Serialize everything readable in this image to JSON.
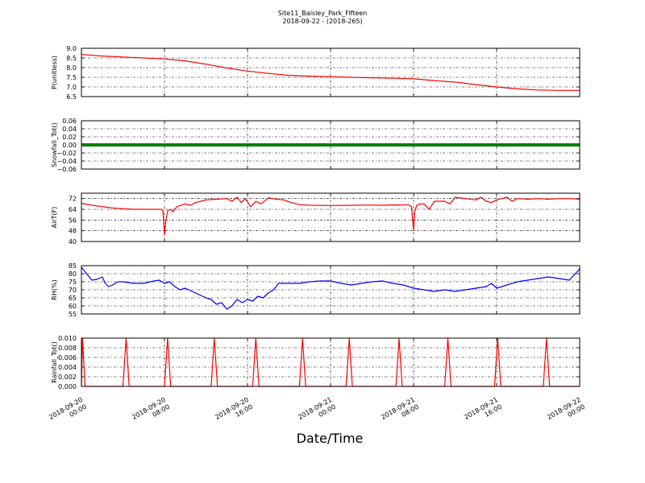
{
  "figure": {
    "title_line1": "Site11_Baisley_Park_Fifteen",
    "title_line2": "2018-09-22 - (2018-265)",
    "xlabel": "Date/Time",
    "x_ticks": [
      {
        "x": 0,
        "line1": "2018-09-20",
        "line2": "00:00"
      },
      {
        "x": 8,
        "line1": "2018-09-20",
        "line2": "08:00"
      },
      {
        "x": 16,
        "line1": "2018-09-20",
        "line2": "16:00"
      },
      {
        "x": 24,
        "line1": "2018-09-21",
        "line2": "00:00"
      },
      {
        "x": 32,
        "line1": "2018-09-21",
        "line2": "08:00"
      },
      {
        "x": 40,
        "line1": "2018-09-21",
        "line2": "16:00"
      },
      {
        "x": 48,
        "line1": "2018-09-22",
        "line2": "00:00"
      }
    ],
    "x_unit_note": "x values are hours since 2018-09-20 00:00",
    "xlim": [
      0,
      48
    ]
  },
  "chart_data": [
    {
      "type": "line",
      "ylabel": "P(unitless)",
      "color": "#ff0000",
      "ylim": [
        6.5,
        9.0
      ],
      "yticks": [
        "9.0",
        "8.5",
        "8.0",
        "7.5",
        "7.0",
        "6.5"
      ],
      "ytick_values": [
        9.0,
        8.5,
        8.0,
        7.5,
        7.0,
        6.5
      ],
      "grid": true,
      "series": [
        {
          "x": [
            0,
            2,
            4,
            6,
            8,
            10,
            12,
            14,
            16,
            18,
            20,
            22,
            24,
            26,
            28,
            30,
            32,
            34,
            36,
            38,
            40,
            42,
            44,
            46,
            48
          ],
          "values": [
            8.68,
            8.6,
            8.55,
            8.5,
            8.45,
            8.35,
            8.18,
            7.98,
            7.82,
            7.7,
            7.6,
            7.56,
            7.53,
            7.5,
            7.47,
            7.45,
            7.42,
            7.33,
            7.25,
            7.12,
            7.0,
            6.9,
            6.84,
            6.82,
            6.82
          ]
        }
      ]
    },
    {
      "type": "line",
      "ylabel": "Snowfall_Tot()",
      "color": "#008000",
      "ylim": [
        -0.06,
        0.06
      ],
      "yticks": [
        "0.06",
        "0.04",
        "0.02",
        "0.00",
        "−0.02",
        "−0.04",
        "−0.06"
      ],
      "ytick_values": [
        0.06,
        0.04,
        0.02,
        0.0,
        -0.02,
        -0.04,
        -0.06
      ],
      "grid": true,
      "series": [
        {
          "x": [
            0,
            48
          ],
          "values": [
            0,
            0
          ]
        }
      ]
    },
    {
      "type": "line",
      "ylabel": "AirT(F)",
      "color": "#ff0000",
      "ylim": [
        40,
        76
      ],
      "yticks": [
        "72",
        "64",
        "56",
        "48",
        "40"
      ],
      "ytick_values": [
        72,
        64,
        56,
        48,
        40
      ],
      "grid": true,
      "series": [
        {
          "x": [
            0,
            1,
            2,
            3,
            4,
            5,
            6,
            7,
            7.7,
            7.85,
            8.0,
            8.15,
            8.3,
            8.6,
            8.8,
            9.2,
            10,
            10.5,
            11,
            11.5,
            12,
            13,
            14,
            14.5,
            15,
            15.4,
            15.8,
            16.3,
            16.8,
            17.3,
            18,
            18.8,
            19.5,
            20,
            21,
            22,
            24,
            26,
            28,
            29,
            30,
            31,
            31.5,
            31.8,
            32.0,
            32.1,
            32.3,
            32.6,
            33,
            33.5,
            34,
            35,
            35.5,
            36,
            37,
            38,
            38.5,
            39,
            39.5,
            40,
            40.5,
            41,
            41.5,
            42,
            43,
            44,
            45,
            46,
            47,
            48
          ],
          "values": [
            68.5,
            67,
            66,
            65,
            64.5,
            64,
            64,
            64,
            64,
            63,
            45,
            56,
            63,
            64,
            62,
            66,
            68,
            67,
            69,
            70,
            71,
            71.5,
            72,
            70,
            73,
            69,
            72,
            66,
            70,
            68,
            72.5,
            71.5,
            71,
            69.5,
            67.5,
            67,
            66.8,
            67,
            67.2,
            67,
            67.3,
            67.2,
            67.5,
            66,
            48,
            62,
            67,
            68,
            68,
            64,
            70,
            70,
            68,
            73,
            72,
            71,
            73,
            70,
            69,
            71,
            72,
            73,
            70,
            72,
            71.5,
            72,
            71.5,
            72,
            72,
            71.5
          ]
        }
      ]
    },
    {
      "type": "line",
      "ylabel": "RH(%)",
      "color": "#0000ff",
      "ylim": [
        55,
        85
      ],
      "yticks": [
        "85",
        "80",
        "75",
        "70",
        "65",
        "60",
        "55"
      ],
      "ytick_values": [
        85,
        80,
        75,
        70,
        65,
        60,
        55
      ],
      "grid": true,
      "series": [
        {
          "x": [
            0,
            0.5,
            1,
            1.5,
            2,
            2.3,
            2.6,
            3,
            3.5,
            4,
            5,
            6,
            7,
            7.5,
            8,
            8.5,
            9,
            9.5,
            10,
            11,
            12,
            12.5,
            13,
            13.5,
            14,
            14.5,
            15,
            15.5,
            16,
            16.5,
            17,
            17.5,
            18,
            18.5,
            19,
            20,
            21,
            22,
            23,
            24,
            25,
            26,
            27,
            28,
            29,
            30,
            31,
            31.5,
            32,
            33,
            34,
            35,
            36,
            37,
            38,
            39,
            39.5,
            40,
            41,
            42,
            43,
            44,
            45,
            46,
            47,
            48
          ],
          "values": [
            84,
            80,
            76,
            76.5,
            78,
            74,
            72,
            73,
            75,
            75,
            74,
            74,
            75.5,
            76,
            74,
            75,
            72,
            70,
            71,
            68,
            65,
            64,
            61,
            62,
            58,
            60,
            64,
            62,
            64,
            63,
            66,
            65,
            68,
            70,
            74,
            74,
            74,
            75,
            75.5,
            75.5,
            74,
            73,
            74,
            75,
            75.5,
            74,
            73,
            72,
            71,
            70,
            69,
            70,
            69,
            70,
            71,
            72,
            74,
            71,
            73,
            75,
            76,
            77,
            78,
            77,
            76,
            83
          ]
        }
      ]
    },
    {
      "type": "line",
      "ylabel": "Rainfall_Tot()",
      "color": "#ff0000",
      "ylim": [
        0.0,
        0.01
      ],
      "yticks": [
        "0.010",
        "0.008",
        "0.006",
        "0.004",
        "0.002",
        "0.000"
      ],
      "ytick_values": [
        0.01,
        0.008,
        0.006,
        0.004,
        0.002,
        0.0
      ],
      "grid": true,
      "series": [
        {
          "x": [
            0,
            0.1,
            0.35,
            0.6,
            4.0,
            4.3,
            4.6,
            8.0,
            8.3,
            8.6,
            12.5,
            12.8,
            13.1,
            16.5,
            16.8,
            17.1,
            21.0,
            21.3,
            21.6,
            25.5,
            25.8,
            26.1,
            30.3,
            30.6,
            30.9,
            35.0,
            35.3,
            35.6,
            39.8,
            40.1,
            40.4,
            44.5,
            44.8,
            45.1,
            48
          ],
          "values": [
            0,
            0.01,
            0,
            0,
            0,
            0.01,
            0,
            0,
            0.01,
            0,
            0,
            0.01,
            0,
            0,
            0.01,
            0,
            0,
            0.01,
            0,
            0,
            0.01,
            0,
            0,
            0.01,
            0,
            0,
            0.01,
            0,
            0,
            0.01,
            0,
            0,
            0.01,
            0,
            0
          ]
        }
      ]
    }
  ]
}
